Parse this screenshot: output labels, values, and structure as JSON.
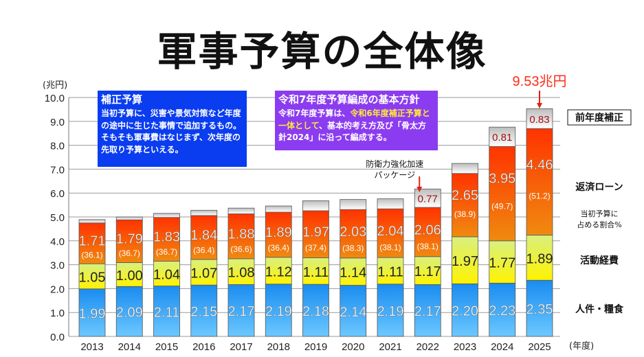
{
  "title": "軍事予算の全体像",
  "callout_blue": {
    "heading": "補正予算",
    "body": "当初予算に、災害や景気対策など年度の途中に生じた事情で追加するもの。そもそも軍事費はなじまず、次年度の先取り予算といえる。"
  },
  "callout_purple": {
    "heading": "令和7年度予算編成の基本方針",
    "body_1": "令和7年度予算は、",
    "body_highlight": "令和6年度補正予算と一体として",
    "body_2": "、基本的考え方及び「骨太方針2024」に沿って編成する。",
    "highlight_color": "#ffe93a"
  },
  "chart_data": {
    "type": "bar",
    "stacked": true,
    "ylabel": "(兆円)",
    "xlabel": "(年度)",
    "ylim": [
      0,
      10
    ],
    "yticks": [
      "0.0",
      "1.0",
      "2.0",
      "3.0",
      "4.0",
      "5.0",
      "6.0",
      "7.0",
      "8.0",
      "9.0",
      "10.0"
    ],
    "grid": true,
    "categories": [
      "2013",
      "2014",
      "2015",
      "2016",
      "2017",
      "2018",
      "2019",
      "2020",
      "2021",
      "2022",
      "2023",
      "2024",
      "2025"
    ],
    "series": [
      {
        "name": "人件・糧食",
        "color": "#2196f3",
        "values": [
          1.99,
          2.09,
          2.11,
          2.15,
          2.17,
          2.19,
          2.18,
          2.14,
          2.19,
          2.17,
          2.2,
          2.23,
          2.35
        ],
        "labels": [
          "1.99",
          "2.09",
          "2.11",
          "2.15",
          "2.17",
          "2.19",
          "2.18",
          "2.14",
          "2.19",
          "2.17",
          "2.20",
          "2.23",
          "2.35"
        ]
      },
      {
        "name": "活動経費",
        "color": "#eef020",
        "values": [
          1.05,
          1.0,
          1.04,
          1.07,
          1.08,
          1.12,
          1.11,
          1.14,
          1.11,
          1.17,
          1.97,
          1.77,
          1.89
        ],
        "labels": [
          "1.05",
          "1.00",
          "1.04",
          "1.07",
          "1.08",
          "1.12",
          "1.11",
          "1.14",
          "1.11",
          "1.17",
          "1.97",
          "1.77",
          "1.89"
        ]
      },
      {
        "name": "返済ローン",
        "color": "#ff4000",
        "values": [
          1.71,
          1.79,
          1.83,
          1.84,
          1.88,
          1.89,
          1.97,
          2.03,
          2.04,
          2.06,
          2.65,
          3.95,
          4.46
        ],
        "labels": [
          "1.71",
          "1.79",
          "1.83",
          "1.84",
          "1.88",
          "1.89",
          "1.97",
          "2.03",
          "2.04",
          "2.06",
          "2.65",
          "3.95",
          "4.46"
        ]
      },
      {
        "name": "前年度補正",
        "color": "#dcdcdc",
        "values": [
          0.14,
          0.12,
          0.17,
          0.22,
          0.24,
          0.26,
          0.42,
          0.42,
          0.42,
          0.77,
          0.42,
          0.81,
          0.83
        ],
        "labels": [
          "",
          "",
          "",
          "",
          "",
          "",
          "",
          "",
          "",
          "0.77",
          "",
          "0.81",
          "0.83"
        ]
      }
    ],
    "loan_share_label": "当初予算に\n占める割合%",
    "loan_share": [
      "(36.1)",
      "(36.7)",
      "(36.7)",
      "(36.4)",
      "(36.6)",
      "(36.4)",
      "(37.4)",
      "(38.3)",
      "(38.1)",
      "(38.1)",
      "(38.9)",
      "(49.7)",
      "(51.2)"
    ],
    "annotations": [
      {
        "text": "防衛力強化加速\nパッケージ",
        "target": "2022"
      },
      {
        "text": "9.53兆円",
        "target": "2025",
        "color": "#ff2a1a"
      }
    ]
  }
}
